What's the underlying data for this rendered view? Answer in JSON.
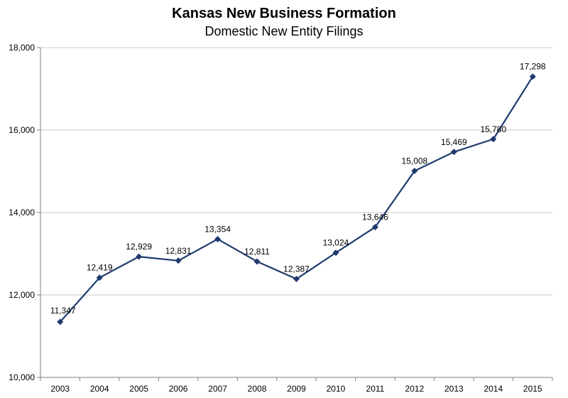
{
  "chart_data": {
    "type": "line",
    "title": "Kansas New Business Formation",
    "subtitle": "Domestic New Entity Filings",
    "xlabel": "",
    "ylabel": "",
    "categories": [
      "2003",
      "2004",
      "2005",
      "2006",
      "2007",
      "2008",
      "2009",
      "2010",
      "2011",
      "2012",
      "2013",
      "2014",
      "2015"
    ],
    "series": [
      {
        "values": [
          11347,
          12419,
          12929,
          12831,
          13354,
          12811,
          12387,
          13024,
          13646,
          15008,
          15469,
          15780,
          17298
        ],
        "data_labels": [
          "11,347",
          "12,419",
          "12,929",
          "12,831",
          "13,354",
          "12,811",
          "12,387",
          "13,024",
          "13,646",
          "15,008",
          "15,469",
          "15,780",
          "17,298"
        ],
        "color": "#1f3a6e",
        "marker": "diamond"
      }
    ],
    "ylim": [
      10000,
      18000
    ],
    "yticks": [
      10000,
      12000,
      14000,
      16000,
      18000
    ],
    "ytick_labels": [
      "10,000",
      "12,000",
      "14,000",
      "16,000",
      "18,000"
    ],
    "grid": true,
    "gridline_color": "#c8c8c8",
    "legend": "none"
  }
}
